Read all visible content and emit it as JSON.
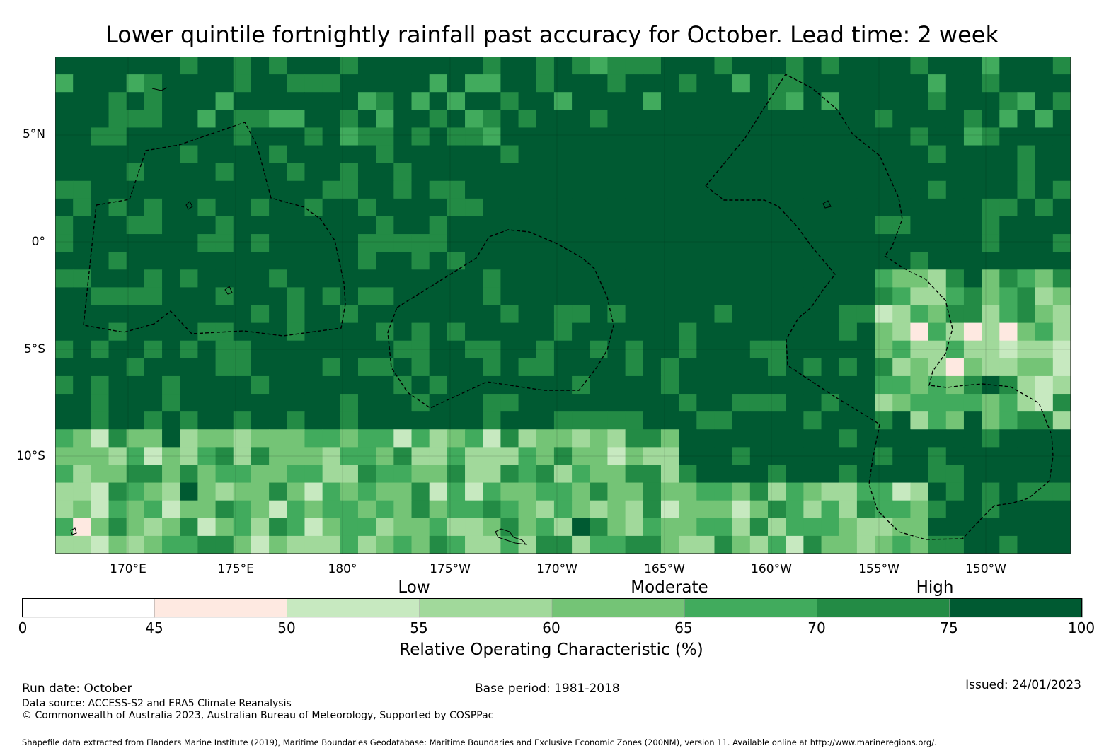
{
  "title": "Lower quintile fortnightly rainfall past accuracy for October. Lead time: 2 week",
  "map": {
    "lon_range": [
      "166.6°E",
      "146.8°W"
    ],
    "lat_range": [
      "8.4°N",
      "14.6°S"
    ],
    "lat_labels": [
      "5°N",
      "0°",
      "5°S",
      "10°S"
    ],
    "lon_labels": [
      "170°E",
      "175°E",
      "180°",
      "175°W",
      "170°W",
      "165°W",
      "160°W",
      "155°W",
      "150°W"
    ],
    "grid_description": "ROC (%) gridded field, mostly 70-100 (dark green) over central Pacific; lower values (45-65) in south-west and east",
    "boundaries": [
      "Exclusive Economic Zone outlines (dashed)",
      "coastlines (solid)"
    ]
  },
  "colorbar": {
    "categories": [
      "Low",
      "Moderate",
      "High"
    ],
    "ticks": [
      "0",
      "45",
      "50",
      "55",
      "60",
      "65",
      "70",
      "75",
      "100"
    ],
    "bins": [
      {
        "from": 0,
        "to": 45,
        "color": "#ffffff"
      },
      {
        "from": 45,
        "to": 50,
        "color": "#fee9e1"
      },
      {
        "from": 50,
        "to": 55,
        "color": "#c7e9c0"
      },
      {
        "from": 55,
        "to": 60,
        "color": "#a1d99b"
      },
      {
        "from": 60,
        "to": 65,
        "color": "#74c476"
      },
      {
        "from": 65,
        "to": 70,
        "color": "#41ab5d"
      },
      {
        "from": 70,
        "to": 75,
        "color": "#238b45"
      },
      {
        "from": 75,
        "to": 100,
        "color": "#005a32"
      }
    ],
    "label": "Relative Operating Characteristic (%)"
  },
  "footer": {
    "run_date": "Run date: October",
    "base_period": "Base period: 1981-2018",
    "issued": "Issued: 24/01/2023",
    "data_source": "Data source: ACCESS-S2 and ERA5 Climate Reanalysis",
    "copyright": "© Commonwealth of Australia 2023, Australian Bureau of Meteorology, Supported by COSPPac",
    "shapefile": "Shapefile data extracted from Flanders Marine Institute (2019), Maritime Boundaries Geodatabase: Maritime Boundaries and Exclusive Economic Zones (200NM), version 11. Available online at http://www.marineregions.org/."
  }
}
